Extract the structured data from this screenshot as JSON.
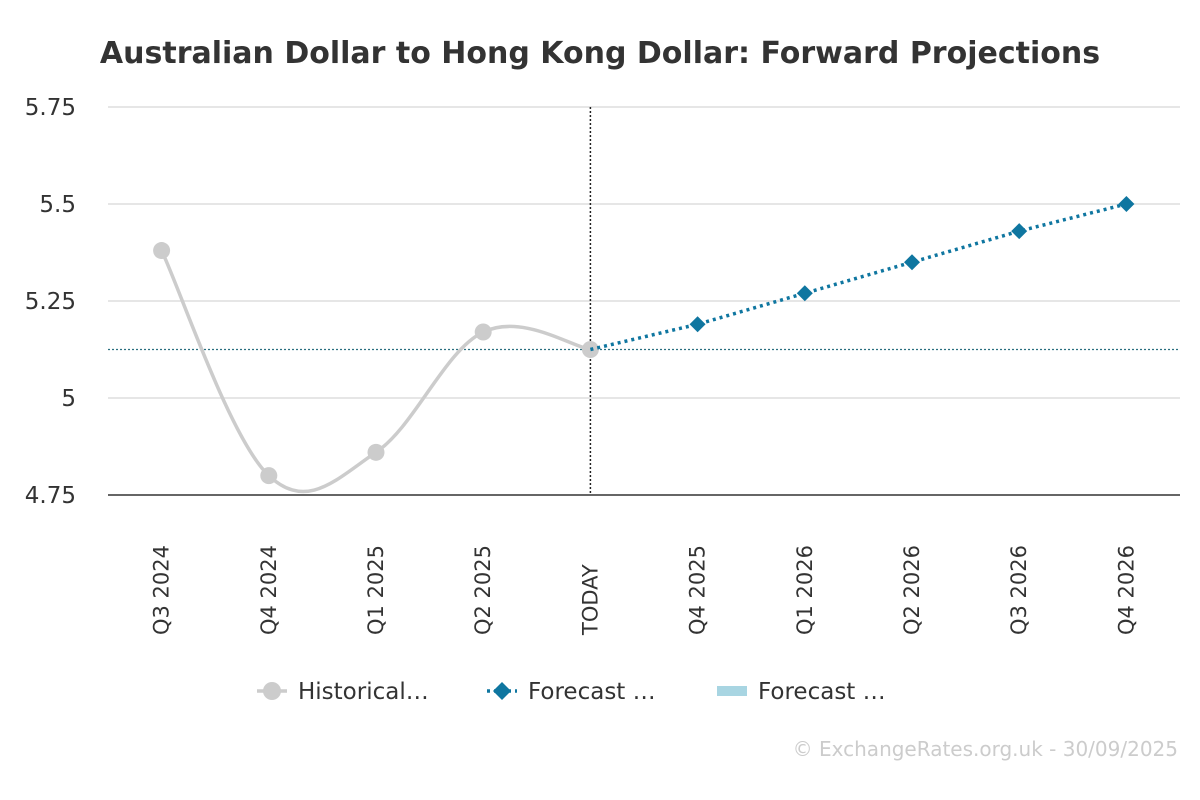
{
  "chart_data": {
    "type": "line",
    "title": "Australian Dollar to Hong Kong Dollar: Forward Projections",
    "categories": [
      "Q3 2024",
      "Q4 2024",
      "Q1 2025",
      "Q2 2025",
      "TODAY",
      "Q4 2025",
      "Q1 2026",
      "Q2 2026",
      "Q3 2026",
      "Q4 2026"
    ],
    "y_ticks": [
      "4.75",
      "5",
      "5.25",
      "5.5",
      "5.75"
    ],
    "ylim": [
      4.75,
      5.75
    ],
    "grid": true,
    "legend_position": "bottom",
    "today_value": 5.125,
    "series": [
      {
        "name": "Historical…",
        "style": "smooth-line-circles",
        "color": "#cccccc",
        "values": [
          5.38,
          4.8,
          4.86,
          5.17,
          5.125,
          null,
          null,
          null,
          null,
          null
        ]
      },
      {
        "name": "Forecast …",
        "style": "dotted-line-diamonds",
        "color": "#0f76a0",
        "values": [
          null,
          null,
          null,
          null,
          5.125,
          5.19,
          5.27,
          5.35,
          5.43,
          5.5
        ]
      },
      {
        "name": "Forecast …",
        "style": "band",
        "color": "#a8d5e2",
        "values": [
          null,
          null,
          null,
          null,
          null,
          null,
          null,
          null,
          null,
          null
        ]
      }
    ]
  },
  "footer": {
    "copyright": "© ExchangeRates.org.uk - 30/09/2025"
  }
}
